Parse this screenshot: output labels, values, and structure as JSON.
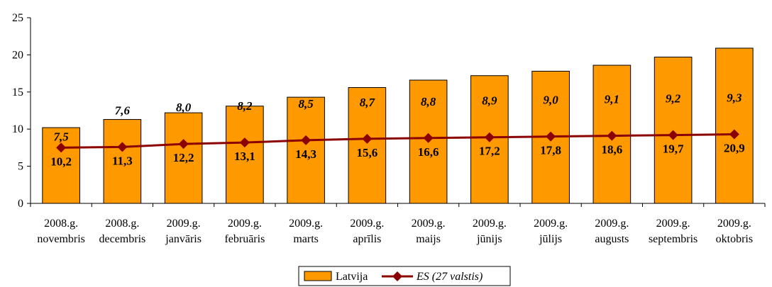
{
  "chart_data": {
    "type": "bar",
    "categories": [
      [
        "2008.g.",
        "novembris"
      ],
      [
        "2008.g.",
        "decembris"
      ],
      [
        "2009.g.",
        "janvāris"
      ],
      [
        "2009.g.",
        "februāris"
      ],
      [
        "2009.g.",
        "marts"
      ],
      [
        "2009.g.",
        "aprīlis"
      ],
      [
        "2009.g.",
        "maijs"
      ],
      [
        "2009.g.",
        "jūnijs"
      ],
      [
        "2009.g.",
        "jūlijs"
      ],
      [
        "2009.g.",
        "augusts"
      ],
      [
        "2009.g.",
        "septembris"
      ],
      [
        "2009.g.",
        "oktobris"
      ]
    ],
    "series": [
      {
        "name": "Latvija",
        "type": "bar",
        "color": "#FF9900",
        "values": [
          10.2,
          11.3,
          12.2,
          13.1,
          14.3,
          15.6,
          16.6,
          17.2,
          17.8,
          18.6,
          19.7,
          20.9
        ],
        "labels": [
          "10,2",
          "11,3",
          "12,2",
          "13,1",
          "14,3",
          "15,6",
          "16,6",
          "17,2",
          "17,8",
          "18,6",
          "19,7",
          "20,9"
        ]
      },
      {
        "name": "ES (27 valstis)",
        "type": "line",
        "color": "#8B0000",
        "marker": "diamond",
        "values": [
          7.5,
          7.6,
          8.0,
          8.2,
          8.5,
          8.7,
          8.8,
          8.9,
          9.0,
          9.1,
          9.2,
          9.3
        ],
        "labels": [
          "7,5",
          "7,6",
          "8,0",
          "8,2",
          "8,5",
          "8,7",
          "8,8",
          "8,9",
          "9,0",
          "9,1",
          "9,2",
          "9,3"
        ]
      }
    ],
    "y_ticks": [
      "0",
      "5",
      "10",
      "15",
      "20",
      "25"
    ],
    "ylim": [
      0,
      25
    ],
    "grid": false,
    "legend_position": "bottom"
  }
}
